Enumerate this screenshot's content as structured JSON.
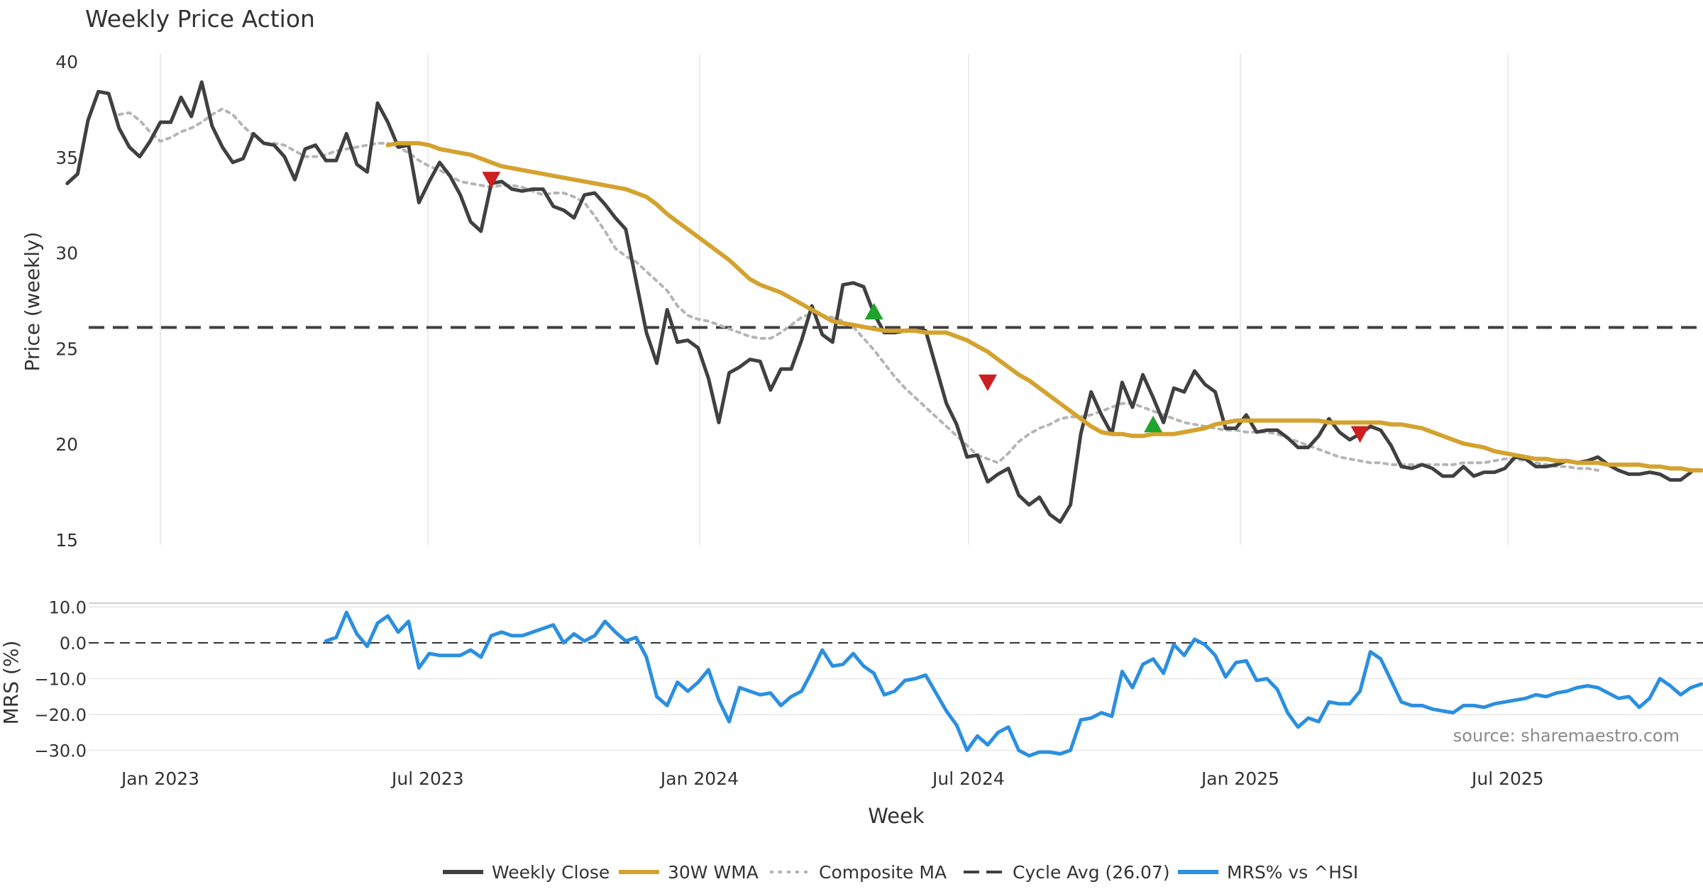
{
  "chart_data": {
    "type": "line",
    "title": "Weekly Price Action",
    "source": "source: sharemaestro.com",
    "xlabel": "Week",
    "x_ticks": [
      "Jan 2023",
      "Jul 2023",
      "Jan 2024",
      "Jul 2024",
      "Jan 2025",
      "Jul 2025"
    ],
    "x_tick_dates": [
      "2023-01-01",
      "2023-07-01",
      "2024-01-01",
      "2024-07-01",
      "2025-01-01",
      "2025-07-01"
    ],
    "x_range": [
      "2022-10-30",
      "2025-10-13"
    ],
    "price_panel": {
      "ylabel": "Price (weekly)",
      "ylim": [
        15,
        40
      ],
      "y_ticks": [
        "15",
        "20",
        "25",
        "30",
        "35",
        "40"
      ],
      "y_tick_values": [
        15,
        20,
        25,
        30,
        35,
        40
      ],
      "cycle_avg": 26.07,
      "series": [
        {
          "name": "Weekly Close",
          "color": "#404040",
          "start_date": "2022-10-30",
          "values": [
            33.6,
            34.1,
            36.9,
            38.4,
            38.3,
            36.5,
            35.5,
            35.0,
            35.8,
            36.8,
            36.8,
            38.1,
            37.1,
            38.9,
            36.6,
            35.5,
            34.7,
            34.9,
            36.2,
            35.7,
            35.6,
            35.0,
            33.8,
            35.4,
            35.6,
            34.8,
            34.8,
            36.2,
            34.6,
            34.2,
            37.8,
            36.8,
            35.5,
            35.6,
            32.6,
            33.7,
            34.7,
            34.0,
            33.0,
            31.6,
            31.1,
            33.6,
            33.7,
            33.3,
            33.2,
            33.3,
            33.3,
            32.4,
            32.2,
            31.8,
            33.0,
            33.1,
            32.5,
            31.8,
            31.2,
            28.5,
            25.8,
            24.2,
            27.0,
            25.3,
            25.4,
            25.0,
            23.4,
            21.1,
            23.7,
            24.0,
            24.4,
            24.3,
            22.8,
            23.9,
            23.9,
            25.4,
            27.2,
            25.7,
            25.3,
            28.3,
            28.4,
            28.2,
            26.8,
            25.8,
            25.8,
            25.9,
            26.0,
            25.9,
            24.0,
            22.1,
            21.0,
            19.3,
            19.4,
            18.0,
            18.4,
            18.7,
            17.3,
            16.8,
            17.2,
            16.3,
            15.9,
            16.8,
            20.5,
            22.7,
            21.5,
            20.5,
            23.2,
            21.9,
            23.6,
            22.4,
            21.1,
            22.9,
            22.7,
            23.8,
            23.1,
            22.7,
            20.8,
            20.8,
            21.5,
            20.6,
            20.7,
            20.7,
            20.3,
            19.8,
            19.8,
            20.4,
            21.3,
            20.6,
            20.2,
            20.5,
            20.9,
            20.7,
            19.9,
            18.8,
            18.7,
            18.9,
            18.7,
            18.3,
            18.3,
            18.8,
            18.3,
            18.5,
            18.5,
            18.7,
            19.3,
            19.2,
            18.8,
            18.8,
            18.9,
            19.1,
            19.0,
            19.1,
            19.3,
            18.9,
            18.6,
            18.4,
            18.4,
            18.5,
            18.4,
            18.1,
            18.1,
            18.5
          ]
        },
        {
          "name": "30W WMA",
          "color": "#d4a22e",
          "start_date": "2023-06-04",
          "values": [
            35.6,
            35.7,
            35.7,
            35.7,
            35.6,
            35.4,
            35.3,
            35.2,
            35.1,
            34.9,
            34.7,
            34.5,
            34.4,
            34.3,
            34.2,
            34.1,
            34.0,
            33.9,
            33.8,
            33.7,
            33.6,
            33.5,
            33.4,
            33.3,
            33.1,
            32.9,
            32.5,
            32.0,
            31.6,
            31.2,
            30.8,
            30.4,
            30.0,
            29.6,
            29.1,
            28.6,
            28.3,
            28.1,
            27.9,
            27.6,
            27.3,
            27.0,
            26.7,
            26.4,
            26.3,
            26.2,
            26.1,
            26.0,
            25.9,
            25.9,
            25.9,
            25.9,
            25.8,
            25.8,
            25.8,
            25.6,
            25.4,
            25.1,
            24.8,
            24.4,
            24.0,
            23.6,
            23.3,
            22.9,
            22.5,
            22.1,
            21.7,
            21.3,
            20.9,
            20.6,
            20.5,
            20.5,
            20.4,
            20.4,
            20.5,
            20.5,
            20.5,
            20.6,
            20.7,
            20.8,
            21.0,
            21.1,
            21.2,
            21.2,
            21.2,
            21.2,
            21.2,
            21.2,
            21.2,
            21.2,
            21.2,
            21.1,
            21.1,
            21.1,
            21.1,
            21.1,
            21.1,
            21.0,
            21.0,
            20.9,
            20.8,
            20.6,
            20.4,
            20.2,
            20.0,
            19.9,
            19.8,
            19.6,
            19.5,
            19.4,
            19.3,
            19.2,
            19.2,
            19.1,
            19.1,
            19.0,
            19.0,
            19.0,
            18.9,
            18.9,
            18.9,
            18.9,
            18.8,
            18.8,
            18.7,
            18.7,
            18.6,
            18.6
          ]
        },
        {
          "name": "Composite MA",
          "color": "#b5b5b5",
          "start_date": "2022-12-04",
          "values": [
            37.2,
            37.3,
            36.9,
            36.3,
            35.8,
            36.0,
            36.3,
            36.5,
            36.8,
            37.2,
            37.5,
            37.2,
            36.6,
            36.1,
            35.7,
            35.7,
            35.6,
            35.3,
            35.0,
            35.0,
            35.1,
            35.3,
            35.4,
            35.5,
            35.6,
            35.7,
            35.7,
            35.5,
            35.2,
            34.8,
            34.5,
            34.3,
            34.0,
            33.7,
            33.6,
            33.5,
            33.4,
            33.5,
            33.5,
            33.4,
            33.2,
            33.0,
            33.1,
            33.1,
            32.9,
            32.6,
            31.9,
            31.1,
            30.2,
            29.8,
            29.5,
            29.0,
            28.5,
            28.0,
            27.2,
            26.7,
            26.5,
            26.4,
            26.2,
            26.0,
            25.8,
            25.6,
            25.5,
            25.5,
            25.8,
            26.2,
            26.6,
            26.8,
            26.7,
            26.6,
            26.4,
            26.1,
            25.5,
            24.9,
            24.2,
            23.5,
            22.9,
            22.4,
            21.9,
            21.4,
            20.9,
            20.4,
            19.9,
            19.4,
            19.2,
            19.0,
            19.5,
            20.1,
            20.5,
            20.8,
            21.0,
            21.3,
            21.4,
            21.4,
            21.5,
            21.7,
            21.9,
            22.1,
            22.1,
            21.9,
            21.7,
            21.5,
            21.3,
            21.1,
            21.0,
            20.9,
            20.8,
            20.7,
            20.7,
            20.6,
            20.6,
            20.6,
            20.5,
            20.3,
            20.1,
            19.9,
            19.7,
            19.5,
            19.3,
            19.2,
            19.1,
            19.0,
            19.0,
            18.9,
            18.9,
            18.9,
            18.9,
            18.9,
            18.9,
            18.9,
            19.0,
            19.0,
            19.0,
            19.1,
            19.2,
            19.2,
            19.1,
            19.0,
            18.9,
            18.8,
            18.8,
            18.7,
            18.7,
            18.6
          ]
        }
      ],
      "markers": [
        {
          "date": "2023-08-13",
          "value": 33.8,
          "direction": "down",
          "color": "#cc1f1f"
        },
        {
          "date": "2024-04-28",
          "value": 26.9,
          "direction": "up",
          "color": "#1fa32c"
        },
        {
          "date": "2024-07-14",
          "value": 23.2,
          "direction": "down",
          "color": "#cc1f1f"
        },
        {
          "date": "2024-11-03",
          "value": 21.0,
          "direction": "up",
          "color": "#1fa32c"
        },
        {
          "date": "2025-03-23",
          "value": 20.5,
          "direction": "down",
          "color": "#cc1f1f"
        }
      ]
    },
    "mrs_panel": {
      "ylabel": "MRS (%)",
      "ylim": [
        -31,
        11
      ],
      "y_ticks": [
        "10.0",
        "0.0",
        "−10.0",
        "−20.0",
        "−30.0"
      ],
      "y_tick_values": [
        10,
        0,
        -10,
        -20,
        -30
      ],
      "series": [
        {
          "name": "MRS% vs ^HSI",
          "color": "#2b8fe0",
          "start_date": "2023-04-23",
          "values": [
            0.5,
            1.5,
            8.5,
            2.5,
            -1.0,
            5.5,
            7.5,
            3.0,
            6.0,
            -7.0,
            -3.0,
            -3.5,
            -3.5,
            -3.5,
            -2.0,
            -4.0,
            2.0,
            3.0,
            2.0,
            2.0,
            3.0,
            4.0,
            5.0,
            0.0,
            2.5,
            0.5,
            2.0,
            6.0,
            3.0,
            0.5,
            1.5,
            -4.0,
            -15.0,
            -17.5,
            -11.0,
            -13.5,
            -11.0,
            -7.5,
            -16.0,
            -22.0,
            -12.5,
            -13.5,
            -14.5,
            -14.0,
            -17.5,
            -15.0,
            -13.5,
            -8.0,
            -2.0,
            -6.5,
            -6.0,
            -3.0,
            -6.5,
            -8.5,
            -14.5,
            -13.5,
            -10.5,
            -10.0,
            -9.0,
            -14.0,
            -19.0,
            -23.0,
            -30.0,
            -26.0,
            -28.5,
            -25.0,
            -23.5,
            -30.0,
            -31.5,
            -30.5,
            -30.5,
            -31.0,
            -30.0,
            -21.5,
            -21.0,
            -19.5,
            -20.5,
            -8.0,
            -12.5,
            -6.0,
            -4.5,
            -8.5,
            -0.5,
            -3.5,
            1.0,
            -0.5,
            -3.5,
            -9.5,
            -5.5,
            -5.0,
            -10.5,
            -10.0,
            -13.0,
            -19.5,
            -23.5,
            -21.0,
            -22.0,
            -16.5,
            -17.0,
            -17.0,
            -13.5,
            -2.5,
            -4.5,
            -10.5,
            -16.5,
            -17.5,
            -17.5,
            -18.5,
            -19.0,
            -19.5,
            -17.5,
            -17.5,
            -18.0,
            -17.0,
            -16.5,
            -16.0,
            -15.5,
            -14.5,
            -15.0,
            -14.0,
            -13.5,
            -12.5,
            -12.0,
            -12.5,
            -14.0,
            -15.5,
            -15.0,
            -18.0,
            -15.5,
            -10.0,
            -12.0,
            -14.5,
            -12.5,
            -11.5
          ]
        }
      ],
      "zero_line": 0
    },
    "legend": [
      {
        "label": "Weekly Close",
        "style": "solid",
        "color": "#404040"
      },
      {
        "label": "30W WMA",
        "style": "solid",
        "color": "#d4a22e"
      },
      {
        "label": "Composite MA",
        "style": "dotted",
        "color": "#b5b5b5"
      },
      {
        "label": "Cycle Avg (26.07)",
        "style": "dashed",
        "color": "#404040"
      },
      {
        "label": "MRS% vs ^HSI",
        "style": "solid",
        "color": "#2b8fe0"
      }
    ],
    "legend_position": "bottom-center"
  }
}
